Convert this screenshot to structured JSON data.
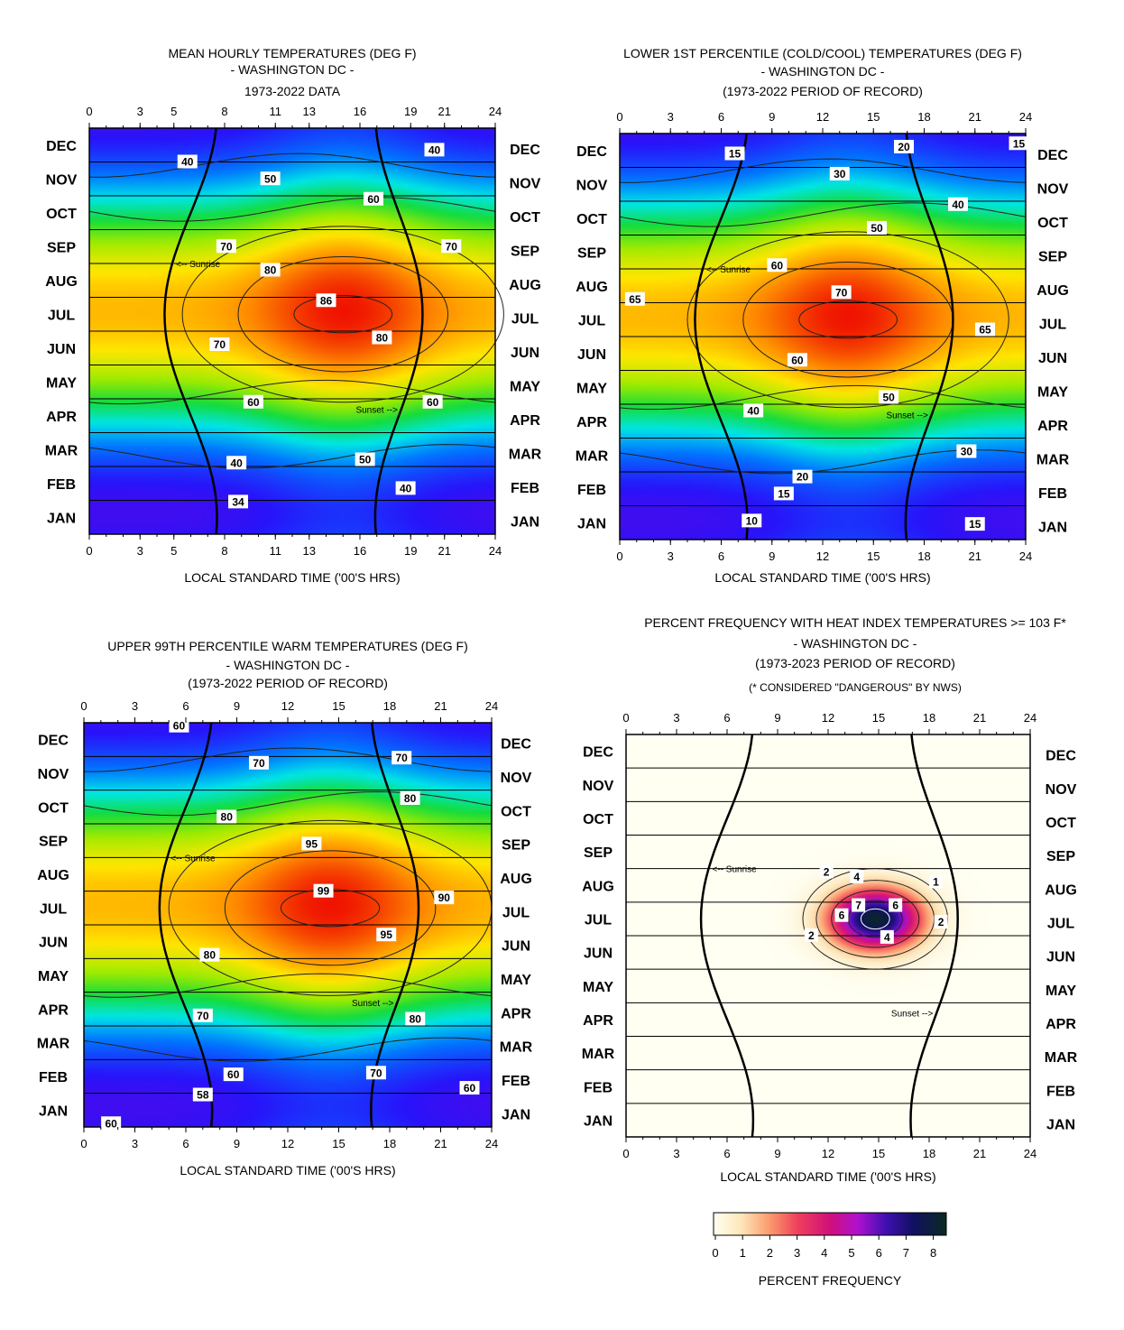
{
  "chart_data": [
    {
      "type": "heatmap",
      "title_lines": [
        "MEAN HOURLY TEMPERATURES (DEG F)",
        "- WASHINGTON DC -",
        "1973-2022 DATA"
      ],
      "xlabel": "LOCAL STANDARD TIME ('00'S HRS)",
      "x_ticks": [
        0,
        3,
        5,
        8,
        11,
        13,
        16,
        19,
        21,
        24
      ],
      "xlim": [
        0,
        24
      ],
      "months": [
        "JAN",
        "FEB",
        "MAR",
        "APR",
        "MAY",
        "JUN",
        "JUL",
        "AUG",
        "SEP",
        "OCT",
        "NOV",
        "DEC"
      ],
      "colormap": "rainbow",
      "value_range": [
        30,
        88
      ],
      "peak": {
        "hour": 15,
        "month_index": 6.5,
        "value": 88
      },
      "contour_labels": [
        {
          "text": "40",
          "hour": 20.4,
          "m": 11.35
        },
        {
          "text": "40",
          "hour": 5.8,
          "m": 11.0
        },
        {
          "text": "50",
          "hour": 10.7,
          "m": 10.5
        },
        {
          "text": "60",
          "hour": 16.8,
          "m": 9.9
        },
        {
          "text": "70",
          "hour": 8.1,
          "m": 8.5
        },
        {
          "text": "70",
          "hour": 21.4,
          "m": 8.5
        },
        {
          "text": "80",
          "hour": 10.7,
          "m": 7.8
        },
        {
          "text": "86",
          "hour": 14.0,
          "m": 6.9
        },
        {
          "text": "80",
          "hour": 17.3,
          "m": 5.8
        },
        {
          "text": "70",
          "hour": 7.7,
          "m": 5.6
        },
        {
          "text": "60",
          "hour": 9.7,
          "m": 3.9
        },
        {
          "text": "60",
          "hour": 20.3,
          "m": 3.9
        },
        {
          "text": "50",
          "hour": 16.3,
          "m": 2.2
        },
        {
          "text": "40",
          "hour": 8.7,
          "m": 2.1
        },
        {
          "text": "40",
          "hour": 18.7,
          "m": 1.35
        },
        {
          "text": "34",
          "hour": 8.8,
          "m": 0.95
        }
      ],
      "sunrise_label": "<-- Sunrise",
      "sunset_label": "Sunset -->"
    },
    {
      "type": "heatmap",
      "title_lines": [
        "LOWER 1ST PERCENTILE (COLD/COOL) TEMPERATURES (DEG F)",
        "- WASHINGTON DC -",
        "(1973-2022 PERIOD OF RECORD)"
      ],
      "xlabel": "LOCAL STANDARD TIME ('00'S HRS)",
      "x_ticks": [
        0,
        3,
        6,
        9,
        12,
        15,
        18,
        21,
        24
      ],
      "xlim": [
        0,
        24
      ],
      "months": [
        "JAN",
        "FEB",
        "MAR",
        "APR",
        "MAY",
        "JUN",
        "JUL",
        "AUG",
        "SEP",
        "OCT",
        "NOV",
        "DEC"
      ],
      "colormap": "rainbow",
      "value_range": [
        8,
        72
      ],
      "peak": {
        "hour": 13.5,
        "month_index": 6.5,
        "value": 71
      },
      "contour_labels": [
        {
          "text": "15",
          "hour": 6.8,
          "m": 11.4
        },
        {
          "text": "20",
          "hour": 16.8,
          "m": 11.6
        },
        {
          "text": "15",
          "hour": 23.6,
          "m": 11.7
        },
        {
          "text": "30",
          "hour": 13.0,
          "m": 10.8
        },
        {
          "text": "40",
          "hour": 20.0,
          "m": 9.9
        },
        {
          "text": "50",
          "hour": 15.2,
          "m": 9.2
        },
        {
          "text": "60",
          "hour": 9.3,
          "m": 8.1
        },
        {
          "text": "65",
          "hour": 0.9,
          "m": 7.1
        },
        {
          "text": "70",
          "hour": 13.1,
          "m": 7.3
        },
        {
          "text": "65",
          "hour": 21.6,
          "m": 6.2
        },
        {
          "text": "60",
          "hour": 10.5,
          "m": 5.3
        },
        {
          "text": "50",
          "hour": 15.9,
          "m": 4.2
        },
        {
          "text": "40",
          "hour": 7.9,
          "m": 3.8
        },
        {
          "text": "30",
          "hour": 20.5,
          "m": 2.6
        },
        {
          "text": "20",
          "hour": 10.8,
          "m": 1.85
        },
        {
          "text": "15",
          "hour": 9.7,
          "m": 1.35
        },
        {
          "text": "10",
          "hour": 7.8,
          "m": 0.55
        },
        {
          "text": "15",
          "hour": 21.0,
          "m": 0.45
        }
      ],
      "sunrise_label": "<-- Sunrise",
      "sunset_label": "Sunset -->"
    },
    {
      "type": "heatmap",
      "title_lines": [
        "UPPER 99TH PERCENTILE WARM TEMPERATURES (DEG F)",
        "- WASHINGTON DC -",
        "(1973-2022 PERIOD OF RECORD)"
      ],
      "xlabel": "LOCAL STANDARD TIME ('00'S HRS)",
      "x_ticks": [
        0,
        3,
        6,
        9,
        12,
        15,
        18,
        21,
        24
      ],
      "xlim": [
        0,
        24
      ],
      "months": [
        "JAN",
        "FEB",
        "MAR",
        "APR",
        "MAY",
        "JUN",
        "JUL",
        "AUG",
        "SEP",
        "OCT",
        "NOV",
        "DEC"
      ],
      "colormap": "rainbow",
      "value_range": [
        55,
        100
      ],
      "peak": {
        "hour": 14.5,
        "month_index": 6.5,
        "value": 99
      },
      "contour_labels": [
        {
          "text": "60",
          "hour": 5.6,
          "m": 11.9
        },
        {
          "text": "70",
          "hour": 10.3,
          "m": 10.8
        },
        {
          "text": "70",
          "hour": 18.7,
          "m": 10.95
        },
        {
          "text": "80",
          "hour": 8.4,
          "m": 9.2
        },
        {
          "text": "80",
          "hour": 19.2,
          "m": 9.75
        },
        {
          "text": "95",
          "hour": 13.4,
          "m": 8.4
        },
        {
          "text": "99",
          "hour": 14.1,
          "m": 7.0
        },
        {
          "text": "90",
          "hour": 21.2,
          "m": 6.8
        },
        {
          "text": "95",
          "hour": 17.8,
          "m": 5.7
        },
        {
          "text": "80",
          "hour": 7.4,
          "m": 5.1
        },
        {
          "text": "70",
          "hour": 7.0,
          "m": 3.3
        },
        {
          "text": "80",
          "hour": 19.5,
          "m": 3.2
        },
        {
          "text": "70",
          "hour": 17.2,
          "m": 1.6
        },
        {
          "text": "60",
          "hour": 8.8,
          "m": 1.55
        },
        {
          "text": "60",
          "hour": 22.7,
          "m": 1.15
        },
        {
          "text": "58",
          "hour": 7.0,
          "m": 0.95
        },
        {
          "text": "60",
          "hour": 1.6,
          "m": 0.1
        }
      ],
      "sunrise_label": "<-- Sunrise",
      "sunset_label": "Sunset -->"
    },
    {
      "type": "heatmap",
      "title_lines": [
        "PERCENT FREQUENCY WITH HEAT INDEX TEMPERATURES >= 103 F*",
        "- WASHINGTON DC -",
        "(1973-2023 PERIOD OF RECORD)",
        "(* CONSIDERED \"DANGEROUS\" BY NWS)"
      ],
      "xlabel": "LOCAL STANDARD TIME ('00'S HRS)",
      "x_ticks": [
        0,
        3,
        6,
        9,
        12,
        15,
        18,
        21,
        24
      ],
      "xlim": [
        0,
        24
      ],
      "months": [
        "JAN",
        "FEB",
        "MAR",
        "APR",
        "MAY",
        "JUN",
        "JUL",
        "AUG",
        "SEP",
        "OCT",
        "NOV",
        "DEC"
      ],
      "colormap": "heat",
      "value_range": [
        0,
        8.5
      ],
      "peak": {
        "hour": 14.8,
        "month_index": 6.5,
        "value": 8.3
      },
      "contour_labels": [
        {
          "text": "2",
          "hour": 11.9,
          "m": 7.9
        },
        {
          "text": "4",
          "hour": 13.7,
          "m": 7.75
        },
        {
          "text": "1",
          "hour": 18.4,
          "m": 7.6
        },
        {
          "text": "7",
          "hour": 13.8,
          "m": 6.9
        },
        {
          "text": "6",
          "hour": 16.0,
          "m": 6.9
        },
        {
          "text": "6",
          "hour": 12.8,
          "m": 6.6
        },
        {
          "text": "2",
          "hour": 18.7,
          "m": 6.4
        },
        {
          "text": "2",
          "hour": 11.0,
          "m": 6.0
        },
        {
          "text": "4",
          "hour": 15.5,
          "m": 5.95
        }
      ],
      "sunrise_label": "<-- Sunrise",
      "sunset_label": "Sunset -->",
      "colorbar": {
        "label": "PERCENT FREQUENCY",
        "ticks": [
          0,
          1,
          2,
          3,
          4,
          5,
          6,
          7,
          8
        ]
      }
    }
  ]
}
